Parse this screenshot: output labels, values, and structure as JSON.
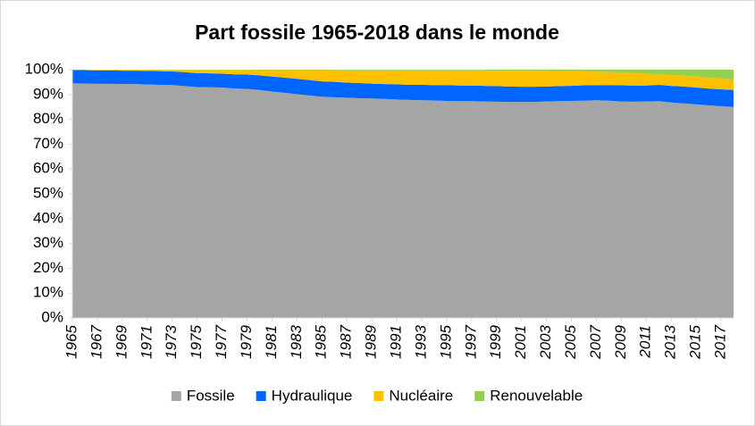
{
  "chart_data": {
    "type": "stacked-area",
    "title": "Part fossile 1965-2018 dans le monde",
    "x": [
      1965,
      1966,
      1967,
      1968,
      1969,
      1970,
      1971,
      1972,
      1973,
      1974,
      1975,
      1976,
      1977,
      1978,
      1979,
      1980,
      1981,
      1982,
      1983,
      1984,
      1985,
      1986,
      1987,
      1988,
      1989,
      1990,
      1991,
      1992,
      1993,
      1994,
      1995,
      1996,
      1997,
      1998,
      1999,
      2000,
      2001,
      2002,
      2003,
      2004,
      2005,
      2006,
      2007,
      2008,
      2009,
      2010,
      2011,
      2012,
      2013,
      2014,
      2015,
      2016,
      2017,
      2018
    ],
    "xlim": [
      1965,
      2018
    ],
    "xticks": [
      1965,
      1967,
      1969,
      1971,
      1973,
      1975,
      1977,
      1979,
      1981,
      1983,
      1985,
      1987,
      1989,
      1991,
      1993,
      1995,
      1997,
      1999,
      2001,
      2003,
      2005,
      2007,
      2009,
      2011,
      2013,
      2015,
      2017
    ],
    "ylim": [
      0,
      100
    ],
    "yticks": [
      {
        "value": 0,
        "label": "0%"
      },
      {
        "value": 10,
        "label": "10%"
      },
      {
        "value": 20,
        "label": "20%"
      },
      {
        "value": 30,
        "label": "30%"
      },
      {
        "value": 40,
        "label": "40%"
      },
      {
        "value": 50,
        "label": "50%"
      },
      {
        "value": 60,
        "label": "60%"
      },
      {
        "value": 70,
        "label": "70%"
      },
      {
        "value": 80,
        "label": "80%"
      },
      {
        "value": 90,
        "label": "90%"
      },
      {
        "value": 100,
        "label": "100%"
      }
    ],
    "legend": "bottom",
    "series": [
      {
        "name": "Fossile",
        "color": "#a5a5a5",
        "values": [
          94.5,
          94.4,
          94.3,
          94.3,
          94.2,
          94.2,
          94.0,
          93.9,
          93.8,
          93.4,
          93.0,
          92.9,
          92.8,
          92.4,
          92.2,
          91.8,
          91.2,
          90.7,
          90.1,
          89.6,
          89.1,
          88.9,
          88.7,
          88.5,
          88.4,
          88.2,
          88.0,
          87.8,
          87.7,
          87.6,
          87.4,
          87.3,
          87.3,
          87.2,
          87.1,
          87.0,
          87.0,
          87.0,
          87.2,
          87.3,
          87.4,
          87.5,
          87.7,
          87.5,
          87.2,
          87.1,
          87.2,
          87.3,
          86.8,
          86.4,
          86.0,
          85.6,
          85.3,
          85.0
        ]
      },
      {
        "name": "Hydraulique",
        "color": "#0066ff",
        "values": [
          5.3,
          5.4,
          5.4,
          5.4,
          5.4,
          5.4,
          5.5,
          5.5,
          5.5,
          5.6,
          5.6,
          5.6,
          5.6,
          5.7,
          5.8,
          5.9,
          6.0,
          6.1,
          6.2,
          6.2,
          6.2,
          6.2,
          6.1,
          6.1,
          6.0,
          6.0,
          6.1,
          6.1,
          6.2,
          6.2,
          6.4,
          6.3,
          6.3,
          6.3,
          6.3,
          6.2,
          6.1,
          6.1,
          6.0,
          6.1,
          6.1,
          6.2,
          6.0,
          6.3,
          6.5,
          6.5,
          6.4,
          6.6,
          6.7,
          6.8,
          6.8,
          6.8,
          6.8,
          6.8
        ]
      },
      {
        "name": "Nucléaire",
        "color": "#ffc000",
        "values": [
          0.1,
          0.1,
          0.2,
          0.2,
          0.3,
          0.3,
          0.4,
          0.5,
          0.6,
          0.9,
          1.3,
          1.4,
          1.5,
          1.8,
          1.9,
          2.1,
          2.6,
          3.0,
          3.5,
          4.0,
          4.5,
          4.7,
          4.9,
          5.1,
          5.3,
          5.5,
          5.6,
          5.8,
          5.8,
          5.9,
          5.9,
          6.1,
          6.1,
          6.2,
          6.2,
          6.4,
          6.5,
          6.4,
          6.3,
          6.0,
          5.9,
          5.6,
          5.5,
          5.2,
          5.2,
          5.1,
          4.8,
          4.3,
          4.4,
          4.4,
          4.4,
          4.4,
          4.3,
          4.2
        ]
      },
      {
        "name": "Renouvelable",
        "color": "#92d050",
        "values": [
          0.1,
          0.1,
          0.1,
          0.1,
          0.1,
          0.1,
          0.1,
          0.1,
          0.1,
          0.1,
          0.1,
          0.1,
          0.1,
          0.1,
          0.1,
          0.2,
          0.2,
          0.2,
          0.2,
          0.2,
          0.2,
          0.2,
          0.3,
          0.3,
          0.3,
          0.3,
          0.3,
          0.3,
          0.3,
          0.3,
          0.3,
          0.3,
          0.3,
          0.3,
          0.4,
          0.4,
          0.4,
          0.5,
          0.5,
          0.6,
          0.6,
          0.7,
          0.8,
          1.0,
          1.1,
          1.3,
          1.6,
          1.8,
          2.1,
          2.4,
          2.8,
          3.2,
          3.6,
          4.0
        ]
      }
    ]
  }
}
